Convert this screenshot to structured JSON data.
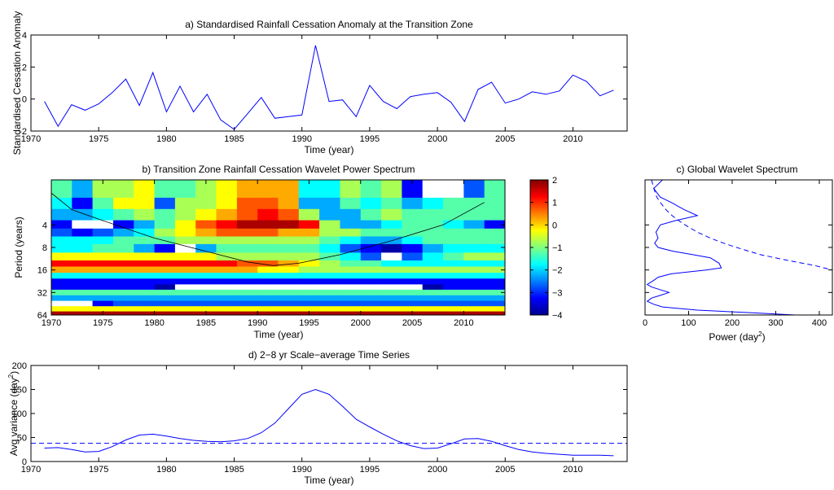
{
  "chart_data": [
    {
      "type": "line",
      "title": "a) Standardised Rainfall Cessation Anomaly at the Transition Zone",
      "xlabel": "Time (year)",
      "ylabel": "Standardised Cessation Anomaly",
      "xlim": [
        1970,
        2014
      ],
      "ylim": [
        -2,
        4
      ],
      "xticks": [
        1970,
        1975,
        1980,
        1985,
        1990,
        1995,
        2000,
        2005,
        2010
      ],
      "yticks": [
        -2,
        0,
        2,
        4
      ],
      "grid": false,
      "color": "#0000ff",
      "x": [
        1971,
        1972,
        1973,
        1974,
        1975,
        1976,
        1977,
        1978,
        1979,
        1980,
        1981,
        1982,
        1983,
        1984,
        1985,
        1986,
        1987,
        1988,
        1989,
        1990,
        1991,
        1992,
        1993,
        1994,
        1995,
        1996,
        1997,
        1998,
        1999,
        2000,
        2001,
        2002,
        2003,
        2004,
        2005,
        2006,
        2007,
        2008,
        2009,
        2010,
        2011,
        2012,
        2013
      ],
      "y": [
        -0.15,
        -1.7,
        -0.35,
        -0.7,
        -0.3,
        0.4,
        1.25,
        -0.4,
        1.65,
        -0.8,
        0.8,
        -0.8,
        0.3,
        -1.3,
        -1.9,
        -0.9,
        0.1,
        -1.2,
        -1.1,
        -1.0,
        3.35,
        -0.15,
        -0.05,
        -1.1,
        0.85,
        -0.15,
        -0.6,
        0.15,
        0.3,
        0.4,
        -0.2,
        -1.4,
        0.6,
        1.05,
        -0.25,
        0.0,
        0.45,
        0.3,
        0.5,
        1.5,
        1.1,
        0.2,
        0.55
      ]
    },
    {
      "type": "heatmap",
      "title": "b) Transition Zone Rainfall Cessation Wavelet Power Spectrum",
      "xlabel": "Time (year)",
      "ylabel": "Period (years)",
      "xlim": [
        1970,
        2014
      ],
      "ylim": [
        64,
        1
      ],
      "y_scale": "log2",
      "xticks": [
        1970,
        1975,
        1980,
        1985,
        1990,
        1995,
        2000,
        2005,
        2010
      ],
      "yticks": [
        4,
        8,
        16,
        32,
        64
      ],
      "colorbar": {
        "min": -4,
        "max": 2,
        "ticks": [
          2,
          1,
          0,
          -1,
          -2,
          -3,
          -4
        ],
        "colormap": "jet"
      },
      "x": [
        1971,
        1973,
        1975,
        1977,
        1979,
        1981,
        1983,
        1985,
        1987,
        1989,
        1991,
        1993,
        1995,
        1997,
        1999,
        2001,
        2003,
        2005,
        2007,
        2009,
        2011,
        2013
      ],
      "period": [
        1.5,
        2,
        3,
        4,
        5,
        6.5,
        8,
        11,
        13,
        16,
        19,
        23,
        27,
        32,
        38,
        45,
        53,
        62
      ],
      "log2_power": [
        [
          -1.2,
          -2.5,
          -1.0,
          -1.0,
          -0.5,
          -1.5,
          -1.2,
          -1.0,
          -0.3,
          0.3,
          0.4,
          0.1,
          -1.6,
          -2.0,
          -1.0,
          -1.3,
          -1.0,
          -3.5,
          -4.1,
          -4.1,
          -3.0,
          -1.5
        ],
        [
          -2.0,
          -3.5,
          -1.2,
          -0.5,
          -0.5,
          -3.0,
          -1.0,
          -1.0,
          -0.5,
          0.5,
          0.6,
          0.2,
          -2.5,
          -2.5,
          -1.5,
          -2.0,
          -1.5,
          -2.5,
          -1.8,
          -1.5,
          -1.5,
          -1.5
        ],
        [
          -2.5,
          -2.5,
          -2.0,
          -1.5,
          -1.0,
          -1.5,
          -1.0,
          -0.5,
          0.0,
          0.8,
          1.0,
          0.5,
          -1.0,
          -2.5,
          -2.5,
          -1.5,
          -1.0,
          -1.5,
          -1.5,
          -1.5,
          -1.5,
          -1.5
        ],
        [
          -3.5,
          -4.1,
          -4.1,
          -3.5,
          -2.5,
          -1.5,
          -0.5,
          0.5,
          1.2,
          1.6,
          1.9,
          1.5,
          1.0,
          -1.0,
          -2.5,
          -2.5,
          -2.0,
          -1.5,
          -1.5,
          -1.8,
          -2.5,
          -3.2
        ],
        [
          -3.0,
          -3.2,
          -3.0,
          -2.5,
          -2.0,
          -1.0,
          -0.5,
          0.3,
          0.5,
          0.5,
          0.5,
          0.4,
          0.0,
          -0.8,
          -1.0,
          -1.2,
          -1.5,
          -1.5,
          -1.5,
          -1.5,
          -1.5,
          -1.5
        ],
        [
          -2.0,
          -2.0,
          -2.0,
          -1.5,
          -1.2,
          -1.5,
          -1.0,
          -1.0,
          -1.0,
          -1.0,
          -1.0,
          -1.0,
          -1.0,
          -1.3,
          -2.0,
          -2.5,
          -2.5,
          -2.0,
          -1.5,
          -1.5,
          -1.5,
          -1.5
        ],
        [
          -2.0,
          -2.0,
          -1.5,
          -1.5,
          -2.5,
          -3.5,
          -4.1,
          -2.5,
          -1.5,
          -1.5,
          -1.5,
          -1.5,
          -1.5,
          -2.0,
          -3.0,
          -3.5,
          -3.8,
          -3.5,
          -2.5,
          -2.0,
          -2.0,
          -2.0
        ],
        [
          -0.5,
          -0.5,
          -0.5,
          -0.5,
          -0.5,
          -0.5,
          -0.5,
          -0.5,
          -0.8,
          -1.0,
          -1.0,
          -1.0,
          -1.0,
          -1.2,
          -2.0,
          -2.8,
          -4.1,
          -3.0,
          -2.0,
          -1.5,
          -1.0,
          -1.0
        ],
        [
          1.2,
          1.2,
          1.2,
          1.2,
          1.2,
          1.2,
          1.2,
          1.2,
          1.0,
          0.8,
          0.5,
          0.0,
          -0.5,
          -1.0,
          -1.2,
          -1.5,
          -2.0,
          -2.0,
          -2.0,
          -2.0,
          -2.0,
          -2.0
        ],
        [
          0.0,
          0.0,
          0.0,
          0.0,
          0.0,
          0.0,
          0.0,
          0.0,
          0.0,
          0.0,
          -0.2,
          -0.5,
          -0.8,
          -1.0,
          -1.0,
          -1.0,
          -1.0,
          -1.0,
          -1.0,
          -1.0,
          -1.0,
          -1.0
        ],
        [
          -2.0,
          -2.0,
          -2.0,
          -2.0,
          -2.0,
          -2.0,
          -2.0,
          -2.0,
          -2.0,
          -2.0,
          -2.0,
          -2.0,
          -2.0,
          -2.0,
          -2.0,
          -2.0,
          -2.0,
          -2.0,
          -2.0,
          -2.0,
          -2.0,
          -2.0
        ],
        [
          -3.5,
          -3.5,
          -3.5,
          -3.5,
          -3.5,
          -3.5,
          -3.5,
          -3.5,
          -3.5,
          -3.5,
          -3.5,
          -3.5,
          -3.5,
          -3.5,
          -3.5,
          -3.5,
          -3.5,
          -3.5,
          -3.5,
          -3.5,
          -3.5,
          -3.5
        ],
        [
          -3.2,
          -3.2,
          -3.2,
          -3.2,
          -3.5,
          -3.8,
          -4.0,
          -4.0,
          -4.0,
          -4.0,
          -4.1,
          -4.1,
          -4.1,
          -4.1,
          -4.1,
          -4.1,
          -4.0,
          -4.0,
          -3.8,
          -3.5,
          -3.2,
          -3.2
        ],
        [
          -1.2,
          -1.2,
          -1.2,
          -1.2,
          -1.2,
          -1.2,
          -1.2,
          -1.2,
          -1.2,
          -1.2,
          -1.2,
          -1.2,
          -1.2,
          -1.2,
          -1.2,
          -1.2,
          -1.2,
          -1.2,
          -1.2,
          -1.2,
          -1.2,
          -1.2
        ],
        [
          -2.2,
          -2.2,
          -2.2,
          -2.2,
          -2.2,
          -2.2,
          -2.2,
          -2.2,
          -2.2,
          -2.2,
          -2.2,
          -2.2,
          -2.2,
          -2.2,
          -2.2,
          -2.2,
          -2.2,
          -2.2,
          -2.2,
          -2.2,
          -2.2,
          -2.2
        ],
        [
          -4.1,
          -4.1,
          -3.5,
          -3.0,
          -3.0,
          -3.0,
          -3.0,
          -3.0,
          -3.0,
          -3.0,
          -3.0,
          -3.0,
          -3.0,
          -3.0,
          -3.0,
          -3.0,
          -3.0,
          -3.0,
          -3.0,
          -3.0,
          -3.0,
          -3.0
        ],
        [
          -0.5,
          -0.5,
          -0.5,
          -0.5,
          -0.5,
          -0.5,
          -0.5,
          -0.5,
          -0.5,
          -0.5,
          -0.5,
          -0.5,
          -0.5,
          -0.5,
          -0.5,
          -0.5,
          -0.5,
          -0.5,
          -0.5,
          -0.5,
          -0.5,
          -0.5
        ],
        [
          1.6,
          1.6,
          1.6,
          1.6,
          1.6,
          1.6,
          1.6,
          1.6,
          1.6,
          1.6,
          1.6,
          1.6,
          1.6,
          1.6,
          1.6,
          1.6,
          1.6,
          1.6,
          1.6,
          1.6,
          1.6,
          1.6
        ]
      ],
      "coi": [
        [
          1970,
          1.5
        ],
        [
          1972,
          2.5
        ],
        [
          1975,
          3.5
        ],
        [
          1980,
          6
        ],
        [
          1985,
          9
        ],
        [
          1989,
          12.5
        ],
        [
          1991.5,
          14
        ],
        [
          1994,
          13
        ],
        [
          1998,
          10
        ],
        [
          2003,
          6.5
        ],
        [
          2008,
          4
        ],
        [
          2012,
          2
        ]
      ]
    },
    {
      "type": "line",
      "title": "c) Global Wavelet Spectrum",
      "xlabel": "Power (day",
      "xlabel_sup": "2",
      "xlabel_tail": ")",
      "xlim": [
        0,
        430
      ],
      "xticks": [
        0,
        100,
        200,
        300,
        400
      ],
      "ylim": [
        64,
        1
      ],
      "y_scale": "log2",
      "color": "#0000ff",
      "series": [
        {
          "style": "solid",
          "period": [
            1,
            1.3,
            1.7,
            2,
            2.5,
            3,
            3.5,
            4,
            4.5,
            5,
            6,
            7,
            8,
            9,
            10,
            11,
            13,
            15,
            16,
            18,
            20,
            22,
            25,
            27,
            30,
            32,
            35,
            38,
            42,
            46,
            50,
            55,
            60,
            64
          ],
          "power": [
            40,
            20,
            35,
            60,
            90,
            120,
            70,
            35,
            30,
            25,
            30,
            22,
            30,
            65,
            110,
            150,
            170,
            175,
            140,
            60,
            30,
            20,
            5,
            15,
            40,
            55,
            35,
            15,
            5,
            20,
            40,
            120,
            250,
            345
          ]
        },
        {
          "style": "dashed",
          "period": [
            1,
            1.3,
            1.7,
            2,
            2.5,
            3,
            3.5,
            4,
            5,
            6,
            7,
            8,
            10,
            12,
            14,
            16
          ],
          "power": [
            15,
            20,
            27,
            35,
            48,
            62,
            77,
            92,
            120,
            150,
            180,
            210,
            265,
            330,
            390,
            430
          ]
        }
      ]
    },
    {
      "type": "line",
      "title": "d) 2−8 yr Scale−average Time Series",
      "xlabel": "Time (year)",
      "ylabel": "Avg variance (day",
      "ylabel_sup": "2",
      "ylabel_tail": ")",
      "xlim": [
        1970,
        2014
      ],
      "ylim": [
        0,
        200
      ],
      "xticks": [
        1970,
        1975,
        1980,
        1985,
        1990,
        1995,
        2000,
        2005,
        2010
      ],
      "yticks": [
        0,
        50,
        100,
        150,
        200
      ],
      "color": "#0000ff",
      "series": [
        {
          "style": "solid",
          "x": [
            1971,
            1972,
            1973,
            1974,
            1975,
            1976,
            1977,
            1978,
            1979,
            1980,
            1981,
            1982,
            1983,
            1984,
            1985,
            1986,
            1987,
            1988,
            1989,
            1990,
            1991,
            1992,
            1993,
            1994,
            1995,
            1996,
            1997,
            1998,
            1999,
            2000,
            2001,
            2002,
            2003,
            2004,
            2005,
            2006,
            2007,
            2008,
            2009,
            2010,
            2011,
            2012,
            2013
          ],
          "y": [
            28,
            29,
            25,
            20,
            21,
            31,
            45,
            55,
            57,
            53,
            48,
            44,
            42,
            41,
            43,
            48,
            60,
            80,
            110,
            140,
            150,
            140,
            115,
            88,
            72,
            57,
            43,
            33,
            27,
            28,
            37,
            47,
            48,
            42,
            33,
            25,
            20,
            17,
            15,
            13,
            13,
            13,
            12
          ]
        },
        {
          "style": "dashed",
          "x": [
            1970,
            2014
          ],
          "y": [
            38,
            38
          ]
        }
      ]
    }
  ]
}
